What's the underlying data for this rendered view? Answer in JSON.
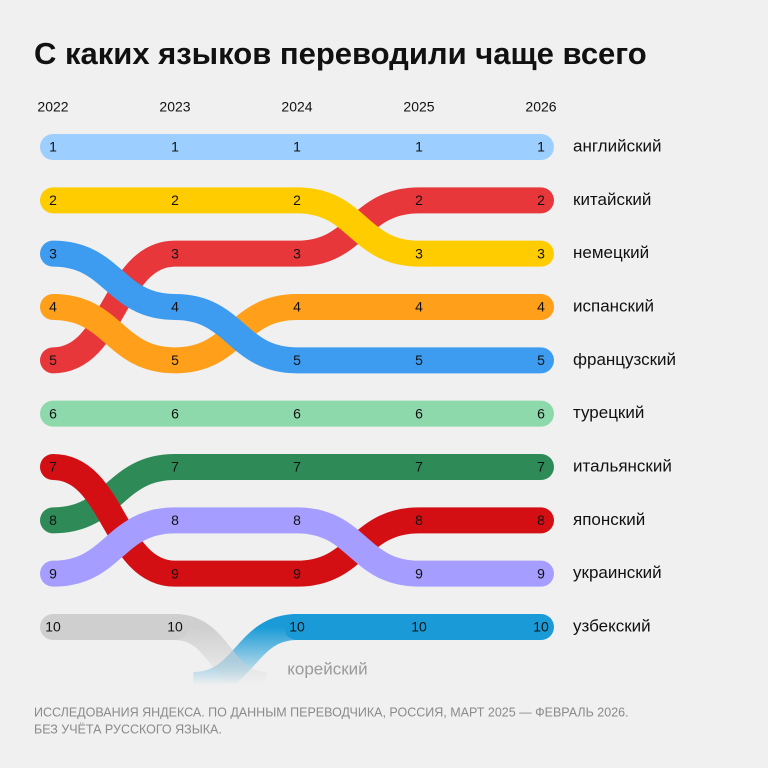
{
  "chart_data": {
    "type": "bump",
    "title": "С каких языков переводили чаще всего",
    "x": [
      "2022",
      "2023",
      "2024",
      "2025",
      "2026"
    ],
    "ylim": [
      1,
      10
    ],
    "series": [
      {
        "name": "английский",
        "color": "#9ccfff",
        "values": [
          1,
          1,
          1,
          1,
          1
        ]
      },
      {
        "name": "китайский",
        "color": "#e8373a",
        "values": [
          5,
          3,
          3,
          2,
          2
        ]
      },
      {
        "name": "немецкий",
        "color": "#ffcc00",
        "values": [
          2,
          2,
          2,
          3,
          3
        ]
      },
      {
        "name": "испанский",
        "color": "#ff9f1a",
        "values": [
          4,
          5,
          4,
          4,
          4
        ]
      },
      {
        "name": "французский",
        "color": "#3d9bf0",
        "values": [
          3,
          4,
          5,
          5,
          5
        ]
      },
      {
        "name": "турецкий",
        "color": "#8dd9ab",
        "values": [
          6,
          6,
          6,
          6,
          6
        ]
      },
      {
        "name": "итальянский",
        "color": "#2e8b57",
        "values": [
          8,
          7,
          7,
          7,
          7
        ]
      },
      {
        "name": "японский",
        "color": "#d40f14",
        "values": [
          7,
          9,
          9,
          8,
          8
        ]
      },
      {
        "name": "украинский",
        "color": "#a59dff",
        "values": [
          9,
          8,
          8,
          9,
          9
        ]
      },
      {
        "name": "узбекский",
        "color": "#1a9bd7",
        "values": [
          null,
          null,
          10,
          10,
          10
        ]
      },
      {
        "name": "корейский",
        "color": "#cfcfcf",
        "values": [
          10,
          10,
          null,
          null,
          null
        ]
      }
    ],
    "note": [
      "ИССЛЕДОВАНИЯ ЯНДЕКСА. ПО ДАННЫМ ПЕРЕВОДЧИКА, РОССИЯ, МАРТ 2025 — ФЕВРАЛЬ 2026.",
      "БЕЗ УЧЁТА РУССКОГО ЯЗЫКА."
    ]
  }
}
